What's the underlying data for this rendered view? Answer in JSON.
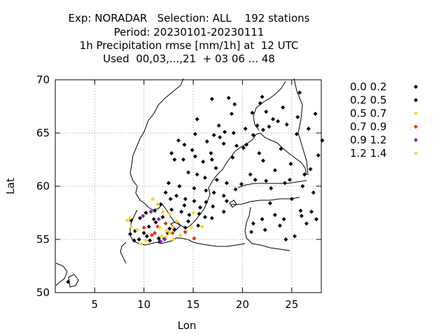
{
  "chart_data": {
    "type": "scatter",
    "title_lines": [
      "Exp: NORADAR   Selection: ALL    192 stations",
      "Period: 20230101-20230111",
      "1h Precipitation rmse [mm/1h] at  12 UTC",
      "Used  00,03,...,21  + 03 06 ... 48"
    ],
    "xlabel": "Lon",
    "ylabel": "Lat",
    "xlim": [
      1,
      28
    ],
    "ylim": [
      50,
      70
    ],
    "x_ticks": [
      5,
      10,
      15,
      20,
      25
    ],
    "y_ticks": [
      50,
      55,
      60,
      65,
      70
    ],
    "grid": true,
    "legend_position": "right",
    "series": [
      {
        "name": "0.0 0.2",
        "color": "#000000",
        "points": [
          [
            2.3,
            51.0
          ],
          [
            14.1,
            63.9
          ],
          [
            15.2,
            64.9
          ],
          [
            15.4,
            66.3
          ],
          [
            16.9,
            68.2
          ],
          [
            18.6,
            68.3
          ],
          [
            19.2,
            67.7
          ],
          [
            21.8,
            67.8
          ],
          [
            22.4,
            67.0
          ],
          [
            23.1,
            66.3
          ],
          [
            23.6,
            66.1
          ],
          [
            20.3,
            65.4
          ],
          [
            21.5,
            65.7
          ],
          [
            22.1,
            65.3
          ],
          [
            22.7,
            65.6
          ],
          [
            17.6,
            65.7
          ],
          [
            18.2,
            65.1
          ],
          [
            19.1,
            65.0
          ],
          [
            16.4,
            64.2
          ],
          [
            17.1,
            64.8
          ],
          [
            17.7,
            64.6
          ],
          [
            18.1,
            64.0
          ],
          [
            19.4,
            63.8
          ],
          [
            20.1,
            63.6
          ],
          [
            13.1,
            62.5
          ],
          [
            14.0,
            62.5
          ],
          [
            15.2,
            62.8
          ],
          [
            16.0,
            62.3
          ],
          [
            16.9,
            62.5
          ],
          [
            17.3,
            61.7
          ],
          [
            14.5,
            61.3
          ],
          [
            15.4,
            61.1
          ],
          [
            16.2,
            60.8
          ],
          [
            17.4,
            60.6
          ],
          [
            18.4,
            60.3
          ],
          [
            12.5,
            60.3
          ],
          [
            13.6,
            60.0
          ],
          [
            15.1,
            59.8
          ],
          [
            16.3,
            59.6
          ],
          [
            17.1,
            59.4
          ],
          [
            18.1,
            59.1
          ],
          [
            12.2,
            59.4
          ],
          [
            13.3,
            59.1
          ],
          [
            14.2,
            58.8
          ],
          [
            15.1,
            58.6
          ],
          [
            16.3,
            58.5
          ],
          [
            17.0,
            58.1
          ],
          [
            18.4,
            58.6
          ],
          [
            13.8,
            57.6
          ],
          [
            14.6,
            57.3
          ],
          [
            16.2,
            57.1
          ],
          [
            15.7,
            58.0
          ],
          [
            14.5,
            56.7
          ],
          [
            15.5,
            56.3
          ],
          [
            13.1,
            55.9
          ],
          [
            14.2,
            56.1
          ],
          [
            11.2,
            56.6
          ],
          [
            10.5,
            56.2
          ],
          [
            9.1,
            55.8
          ],
          [
            10.3,
            55.3
          ],
          [
            9.5,
            55.0
          ],
          [
            10.6,
            54.9
          ],
          [
            11.5,
            55.1
          ],
          [
            12.4,
            55.6
          ],
          [
            12.1,
            55.1
          ],
          [
            11.1,
            57.7
          ],
          [
            10.2,
            57.5
          ],
          [
            8.7,
            56.8
          ],
          [
            9.6,
            57.0
          ],
          [
            11.7,
            58.3
          ],
          [
            19.9,
            60.2
          ],
          [
            21.3,
            60.6
          ],
          [
            22.4,
            60.5
          ],
          [
            22.9,
            59.8
          ],
          [
            24.3,
            60.3
          ],
          [
            26.1,
            60.0
          ],
          [
            26.9,
            61.6
          ],
          [
            23.3,
            61.5
          ],
          [
            22.1,
            62.4
          ],
          [
            21.7,
            63.1
          ],
          [
            23.9,
            63.5
          ],
          [
            24.9,
            62.1
          ],
          [
            27.7,
            62.9
          ],
          [
            25.5,
            64.9
          ],
          [
            26.7,
            65.4
          ],
          [
            27.4,
            66.8
          ],
          [
            25.6,
            66.5
          ],
          [
            24.5,
            65.8
          ],
          [
            23.3,
            57.3
          ],
          [
            24.2,
            56.9
          ],
          [
            21.1,
            56.5
          ],
          [
            22.0,
            56.9
          ],
          [
            25.9,
            57.7
          ],
          [
            26.5,
            56.5
          ],
          [
            27.5,
            56.9
          ],
          [
            23.8,
            56.3
          ],
          [
            22.3,
            55.9
          ],
          [
            20.9,
            55.7
          ],
          [
            25.3,
            55.3
          ],
          [
            24.4,
            55.0
          ],
          [
            11.0,
            56.9
          ],
          [
            12.8,
            57.8
          ]
        ]
      },
      {
        "name": "0.2 0.5",
        "color": "#000000",
        "points": [
          [
            13.5,
            64.3
          ],
          [
            12.8,
            63.1
          ],
          [
            14.9,
            63.4
          ],
          [
            16.8,
            63.1
          ],
          [
            19.0,
            62.7
          ],
          [
            20.4,
            63.9
          ],
          [
            21.1,
            64.8
          ],
          [
            18.9,
            66.8
          ],
          [
            21.0,
            66.9
          ],
          [
            22.0,
            68.4
          ],
          [
            24.1,
            67.4
          ],
          [
            25.8,
            68.8
          ],
          [
            20.8,
            61.1
          ],
          [
            19.3,
            59.7
          ],
          [
            15.6,
            57.4
          ],
          [
            16.9,
            57.0
          ],
          [
            14.1,
            58.2
          ],
          [
            18.1,
            57.6
          ],
          [
            12.7,
            58.8
          ],
          [
            11.9,
            57.1
          ],
          [
            10.0,
            55.6
          ],
          [
            8.6,
            55.5
          ],
          [
            9.0,
            54.9
          ],
          [
            11.6,
            54.8
          ],
          [
            12.6,
            56.0
          ],
          [
            24.8,
            60.6
          ],
          [
            26.3,
            61.1
          ],
          [
            28.1,
            64.3
          ],
          [
            22.8,
            58.4
          ],
          [
            25.0,
            58.8
          ],
          [
            27.2,
            59.4
          ],
          [
            26.0,
            57.2
          ],
          [
            27.0,
            57.6
          ]
        ]
      },
      {
        "name": "0.5 0.7",
        "color": "#f5d62e",
        "points": [
          [
            8.3,
            56.8
          ],
          [
            8.6,
            57.0
          ],
          [
            10.9,
            58.8
          ],
          [
            11.4,
            58.3
          ],
          [
            11.9,
            57.6
          ],
          [
            12.6,
            57.4
          ],
          [
            13.3,
            56.7
          ],
          [
            14.2,
            55.7
          ],
          [
            14.8,
            56.1
          ],
          [
            15.0,
            57.5
          ],
          [
            15.9,
            56.2
          ],
          [
            8.7,
            56.2
          ],
          [
            9.3,
            55.9
          ],
          [
            11.0,
            55.5
          ],
          [
            12.2,
            55.2
          ],
          [
            13.0,
            55.0
          ],
          [
            13.7,
            55.4
          ],
          [
            10.2,
            54.9
          ],
          [
            9.7,
            54.6
          ],
          [
            12.9,
            56.1
          ]
        ]
      },
      {
        "name": "0.7 0.9",
        "color": "#e3321c",
        "points": [
          [
            10.0,
            56.1
          ],
          [
            11.4,
            56.2
          ],
          [
            12.2,
            56.5
          ],
          [
            12.9,
            55.6
          ],
          [
            14.2,
            55.7
          ],
          [
            15.1,
            55.1
          ],
          [
            11.1,
            55.6
          ],
          [
            10.8,
            55.4
          ]
        ]
      },
      {
        "name": "0.9 1.2",
        "color": "#8a1ec8",
        "points": [
          [
            9.9,
            57.2
          ],
          [
            10.7,
            57.6
          ],
          [
            11.5,
            56.9
          ],
          [
            12.1,
            55.0
          ],
          [
            11.7,
            54.8
          ]
        ]
      },
      {
        "name": "1.2 1.4",
        "color": "#f5d62e",
        "points": [
          [
            12.3,
            55.8
          ],
          [
            11.6,
            56.1
          ],
          [
            11.8,
            55.3
          ],
          [
            12.6,
            55.6
          ]
        ]
      }
    ]
  }
}
